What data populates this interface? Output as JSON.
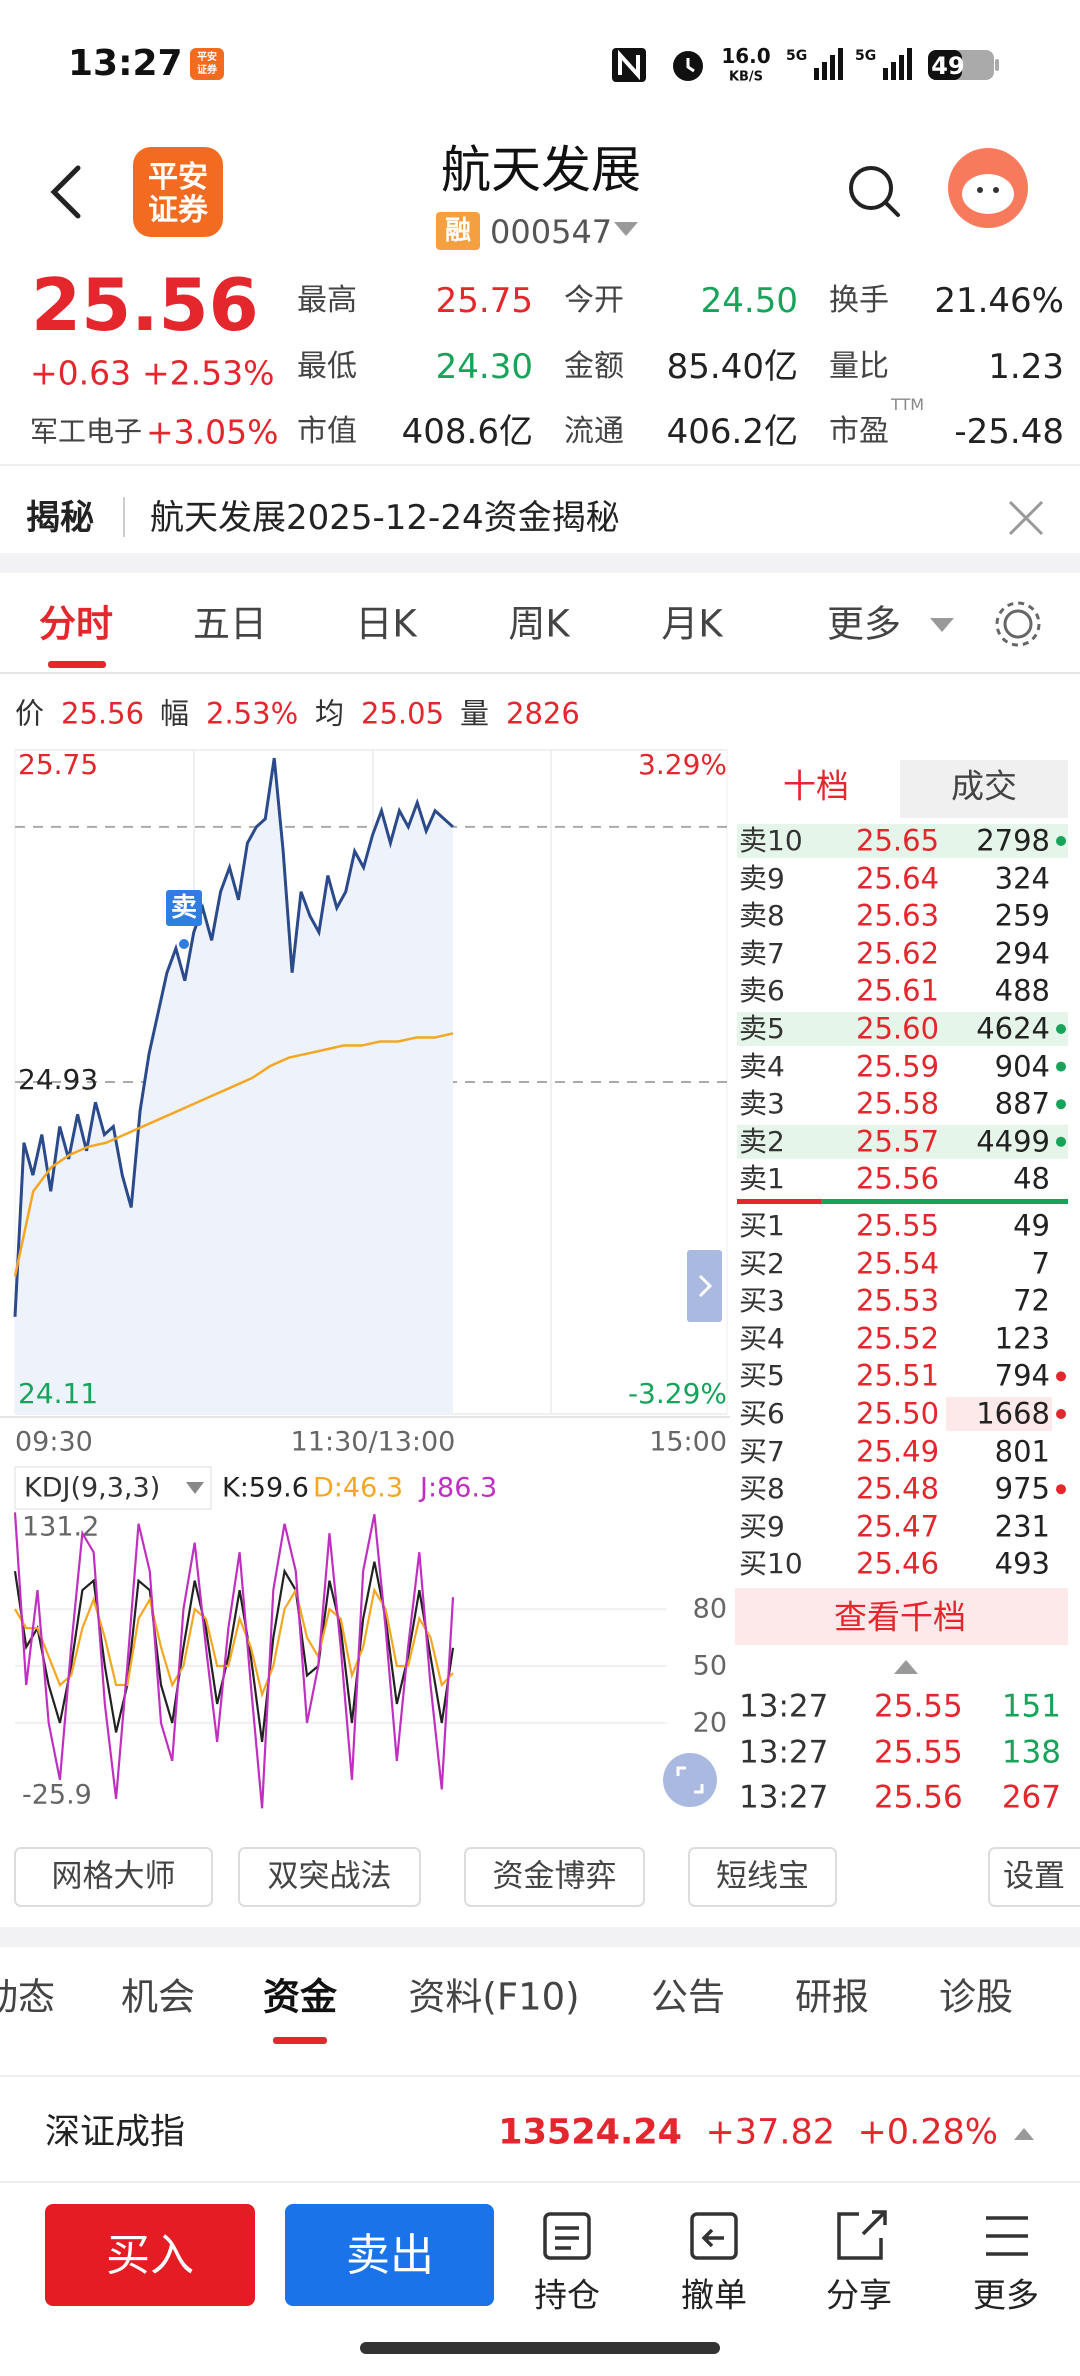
{
  "status_bar": {
    "time": "13:27",
    "app_icon": [
      "平安",
      "证券"
    ],
    "speed": "16.0",
    "speed_unit": "KB/S",
    "sim1": "5G",
    "sim2": "5G",
    "battery": "49"
  },
  "header": {
    "logo": [
      "平安",
      "证券"
    ],
    "title": "航天发展",
    "badge": "融",
    "code": "000547"
  },
  "quote": {
    "price": "25.56",
    "change": "+0.63",
    "change_pct": "+2.53%",
    "sector": "军工电子",
    "sector_pct": "+3.05%",
    "stats": [
      {
        "label": "最高",
        "value": "25.75",
        "color": "#e4262d"
      },
      {
        "label": "今开",
        "value": "24.50",
        "color": "#17a35a"
      },
      {
        "label": "换手",
        "value": "21.46%",
        "color": "#222222"
      },
      {
        "label": "最低",
        "value": "24.30",
        "color": "#17a35a"
      },
      {
        "label": "金额",
        "value": "85.40亿",
        "color": "#222222"
      },
      {
        "label": "量比",
        "value": "1.23",
        "color": "#222222"
      },
      {
        "label": "市值",
        "value": "408.6亿",
        "color": "#222222"
      },
      {
        "label": "流通",
        "value": "406.2亿",
        "color": "#222222"
      },
      {
        "label": "市盈",
        "value": "-25.48",
        "note": "TTM",
        "color": "#222222"
      }
    ]
  },
  "notice": {
    "tag": "揭秘",
    "text": "航天发展2025-12-24资金揭秘"
  },
  "tabs": {
    "items": [
      "分时",
      "五日",
      "日K",
      "周K",
      "月K",
      "更多"
    ],
    "active": 0
  },
  "info": [
    {
      "label": "价",
      "value": "25.56"
    },
    {
      "label": "幅",
      "value": "2.53%"
    },
    {
      "label": "均",
      "value": "25.05"
    },
    {
      "label": "量",
      "value": "2826"
    }
  ],
  "intraday": {
    "ylim": [
      24.11,
      25.75
    ],
    "yticks": [
      24.11,
      24.93,
      25.75
    ],
    "prev_close": 24.93,
    "current": 25.56,
    "pct_labels": [
      "3.29%",
      "-3.29%"
    ],
    "xlabels": [
      "09:30",
      "11:30/13:00",
      "15:00"
    ],
    "sell_marker": "卖",
    "price": {
      "color": "#2b4a8b",
      "values": [
        24.35,
        24.78,
        24.7,
        24.8,
        24.66,
        24.82,
        24.74,
        24.85,
        24.76,
        24.88,
        24.8,
        24.82,
        24.7,
        24.62,
        24.86,
        25.0,
        25.1,
        25.2,
        25.26,
        25.18,
        25.3,
        25.36,
        25.28,
        25.4,
        25.46,
        25.38,
        25.52,
        25.56,
        25.58,
        25.73,
        25.5,
        25.2,
        25.4,
        25.34,
        25.3,
        25.44,
        25.36,
        25.4,
        25.5,
        25.46,
        25.54,
        25.6,
        25.52,
        25.6,
        25.56,
        25.62,
        25.55,
        25.6,
        25.58,
        25.56
      ]
    },
    "avg": {
      "color": "#f5a623",
      "values": [
        24.45,
        24.66,
        24.72,
        24.75,
        24.77,
        24.78,
        24.8,
        24.82,
        24.84,
        24.86,
        24.88,
        24.9,
        24.92,
        24.94,
        24.97,
        24.99,
        25.0,
        25.01,
        25.02,
        25.02,
        25.03,
        25.03,
        25.04,
        25.04,
        25.05
      ]
    }
  },
  "kdj": {
    "label": "KDJ(9,3,3)",
    "ylim": [
      -25.9,
      131.2
    ],
    "yticks": [
      20,
      50,
      80
    ],
    "series": [
      {
        "label": "K:59.6",
        "color": "#222222",
        "values": [
          100,
          60,
          70,
          40,
          20,
          50,
          90,
          95,
          50,
          15,
          40,
          95,
          90,
          40,
          20,
          60,
          95,
          70,
          30,
          55,
          90,
          55,
          10,
          65,
          100,
          90,
          45,
          50,
          95,
          70,
          20,
          75,
          105,
          75,
          30,
          55,
          90,
          55,
          20,
          59.6
        ]
      },
      {
        "label": "D:46.3",
        "color": "#f5a623",
        "values": [
          80,
          70,
          70,
          55,
          40,
          45,
          70,
          85,
          65,
          40,
          40,
          75,
          85,
          60,
          40,
          50,
          80,
          75,
          50,
          50,
          75,
          60,
          35,
          50,
          80,
          90,
          65,
          55,
          80,
          75,
          45,
          60,
          90,
          80,
          50,
          50,
          75,
          65,
          40,
          46.3
        ]
      },
      {
        "label": "J:86.3",
        "color": "#c030c0",
        "values": [
          131,
          40,
          90,
          20,
          -10,
          60,
          120,
          110,
          30,
          -20,
          50,
          125,
          100,
          20,
          0,
          80,
          115,
          60,
          10,
          70,
          110,
          40,
          -25,
          90,
          125,
          100,
          20,
          50,
          120,
          60,
          -10,
          100,
          130,
          70,
          0,
          60,
          110,
          40,
          -15,
          86.3
        ]
      }
    ]
  },
  "order_book": {
    "tabs": [
      "十档",
      "成交"
    ],
    "asks": [
      {
        "label": "卖10",
        "price": "25.65",
        "volume": 2798,
        "dot": "#17a35a",
        "highlight": true
      },
      {
        "label": "卖9",
        "price": "25.64",
        "volume": 324
      },
      {
        "label": "卖8",
        "price": "25.63",
        "volume": 259
      },
      {
        "label": "卖7",
        "price": "25.62",
        "volume": 294
      },
      {
        "label": "卖6",
        "price": "25.61",
        "volume": 488
      },
      {
        "label": "卖5",
        "price": "25.60",
        "volume": 4624,
        "dot": "#17a35a",
        "highlight": true
      },
      {
        "label": "卖4",
        "price": "25.59",
        "volume": 904,
        "dot": "#17a35a"
      },
      {
        "label": "卖3",
        "price": "25.58",
        "volume": 887,
        "dot": "#17a35a"
      },
      {
        "label": "卖2",
        "price": "25.57",
        "volume": 4499,
        "dot": "#17a35a",
        "highlight": true
      },
      {
        "label": "卖1",
        "price": "25.56",
        "volume": 48
      }
    ],
    "bids": [
      {
        "label": "买1",
        "price": "25.55",
        "volume": 49
      },
      {
        "label": "买2",
        "price": "25.54",
        "volume": 7
      },
      {
        "label": "买3",
        "price": "25.53",
        "volume": 72
      },
      {
        "label": "买4",
        "price": "25.52",
        "volume": 123
      },
      {
        "label": "买5",
        "price": "25.51",
        "volume": 794,
        "dot": "#e4262d"
      },
      {
        "label": "买6",
        "price": "25.50",
        "volume": 1668,
        "dot": "#e4262d",
        "highlight": true
      },
      {
        "label": "买7",
        "price": "25.49",
        "volume": 801
      },
      {
        "label": "买8",
        "price": "25.48",
        "volume": 975,
        "dot": "#e4262d"
      },
      {
        "label": "买9",
        "price": "25.47",
        "volume": 231
      },
      {
        "label": "买10",
        "price": "25.46",
        "volume": 493
      }
    ],
    "view_more": "查看千档",
    "trades": [
      {
        "time": "13:27",
        "price": "25.55",
        "volume": 151,
        "color": "#17a35a"
      },
      {
        "time": "13:27",
        "price": "25.55",
        "volume": 138,
        "color": "#17a35a"
      },
      {
        "time": "13:27",
        "price": "25.56",
        "volume": 267,
        "color": "#e4262d"
      }
    ]
  },
  "tools": {
    "items": [
      "网格大师",
      "双突战法",
      "资金博弈",
      "短线宝"
    ],
    "settings": "设置"
  },
  "sub_tabs": {
    "items": [
      "动态",
      "机会",
      "资金",
      "资料(F10)",
      "公告",
      "研报",
      "诊股"
    ],
    "active": 2
  },
  "index": {
    "name": "深证成指",
    "value": "13524.24",
    "change": "+37.82",
    "change_pct": "+0.28%"
  },
  "bottom_bar": {
    "buy": "买入",
    "sell": "卖出",
    "actions": [
      "持仓",
      "撤单",
      "分享",
      "更多"
    ]
  }
}
